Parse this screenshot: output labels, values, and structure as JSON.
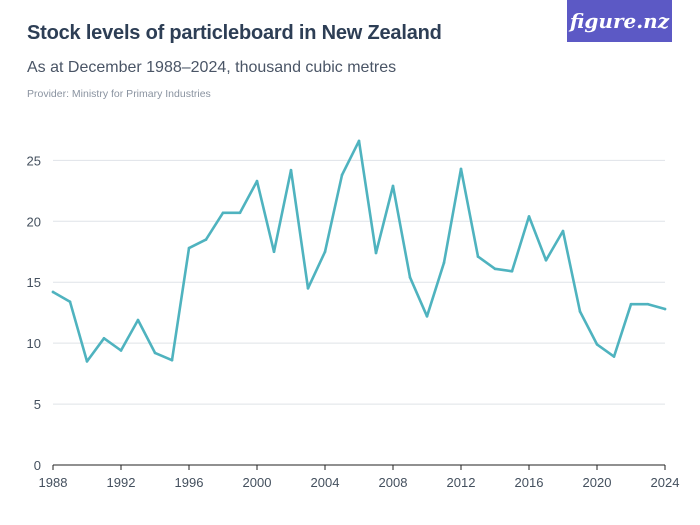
{
  "header": {
    "title": "Stock levels of particleboard in New Zealand",
    "subtitle": "As at December 1988–2024, thousand cubic metres",
    "provider": "Provider: Ministry for Primary Industries",
    "logo": "figure.nz"
  },
  "colors": {
    "line": "#4fb3bf",
    "grid": "#dfe3e8",
    "logo_bg": "#5c59c5",
    "axis": "#222222"
  },
  "chart_data": {
    "type": "line",
    "title": "Stock levels of particleboard in New Zealand",
    "subtitle": "As at December 1988–2024, thousand cubic metres",
    "xlabel": "",
    "ylabel": "",
    "xlim": [
      1988,
      2024
    ],
    "ylim": [
      0,
      27
    ],
    "yticks": [
      0,
      5,
      10,
      15,
      20,
      25
    ],
    "xticks": [
      1988,
      1992,
      1996,
      2000,
      2004,
      2008,
      2012,
      2016,
      2020,
      2024
    ],
    "grid": true,
    "x": [
      1988,
      1989,
      1990,
      1991,
      1992,
      1993,
      1994,
      1995,
      1996,
      1997,
      1998,
      1999,
      2000,
      2001,
      2002,
      2003,
      2004,
      2005,
      2006,
      2007,
      2008,
      2009,
      2010,
      2011,
      2012,
      2013,
      2014,
      2015,
      2016,
      2017,
      2018,
      2019,
      2020,
      2021,
      2022,
      2023,
      2024
    ],
    "series": [
      {
        "values": [
          14.2,
          13.4,
          8.5,
          10.4,
          9.4,
          11.9,
          9.2,
          8.6,
          17.8,
          18.5,
          20.7,
          20.7,
          23.3,
          17.5,
          24.2,
          14.5,
          17.5,
          23.8,
          26.6,
          17.4,
          22.9,
          15.4,
          12.2,
          16.6,
          24.3,
          17.1,
          16.1,
          15.9,
          20.4,
          16.8,
          19.2,
          12.6,
          9.9,
          8.9,
          13.2,
          13.2,
          12.8
        ]
      }
    ]
  }
}
